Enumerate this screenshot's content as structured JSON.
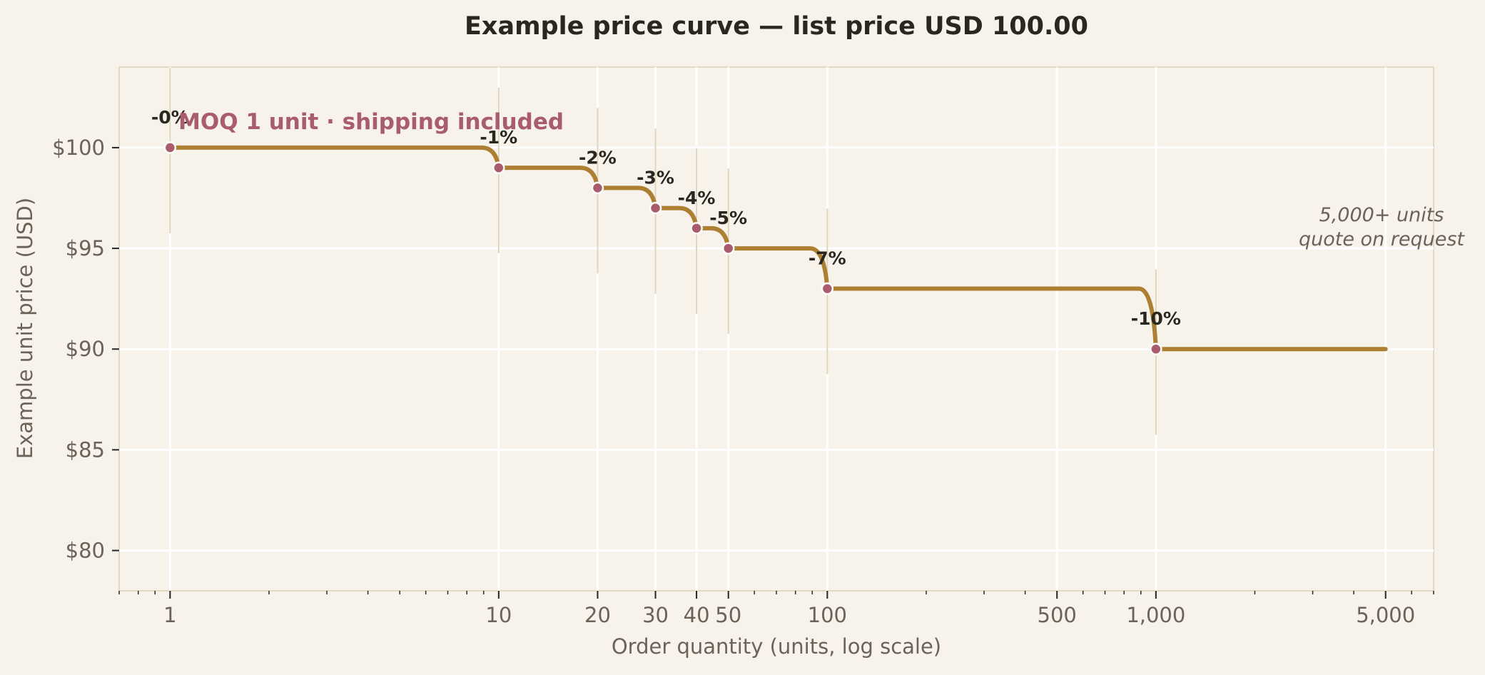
{
  "chart_data": {
    "type": "line",
    "title": "Example price curve — list price USD 100.00",
    "xlabel": "Order quantity (units, log scale)",
    "ylabel": "Example unit price (USD)",
    "x_scale": "log",
    "xlim": [
      0.7,
      7000
    ],
    "ylim": [
      78,
      104
    ],
    "grid": true,
    "x_ticks": [
      {
        "value": 1,
        "label": "1"
      },
      {
        "value": 10,
        "label": "10"
      },
      {
        "value": 20,
        "label": "20"
      },
      {
        "value": 30,
        "label": "30"
      },
      {
        "value": 40,
        "label": "40"
      },
      {
        "value": 50,
        "label": "50"
      },
      {
        "value": 100,
        "label": "100"
      },
      {
        "value": 500,
        "label": "500"
      },
      {
        "value": 1000,
        "label": "1,000"
      },
      {
        "value": 5000,
        "label": "5,000"
      }
    ],
    "y_ticks": [
      {
        "value": 80,
        "label": "$80"
      },
      {
        "value": 85,
        "label": "$85"
      },
      {
        "value": 90,
        "label": "$90"
      },
      {
        "value": 95,
        "label": "$95"
      },
      {
        "value": 100,
        "label": "$100"
      }
    ],
    "tiers": [
      {
        "qty": 1,
        "price": 100,
        "label": "-0%"
      },
      {
        "qty": 10,
        "price": 99,
        "label": "-1%"
      },
      {
        "qty": 20,
        "price": 98,
        "label": "-2%"
      },
      {
        "qty": 30,
        "price": 97,
        "label": "-3%"
      },
      {
        "qty": 40,
        "price": 96,
        "label": "-4%"
      },
      {
        "qty": 50,
        "price": 95,
        "label": "-5%"
      },
      {
        "qty": 100,
        "price": 93,
        "label": "-7%"
      },
      {
        "qty": 1000,
        "price": 90,
        "label": "-10%"
      }
    ],
    "curve_end_qty": 5000,
    "annotations": {
      "moq": "MOQ 1 unit · shipping included",
      "note_line1": "5,000+ units",
      "note_line2": "quote on request"
    },
    "colors": {
      "background": "#f7f2ea",
      "curve": "#ad7f33",
      "marker": "#a95c6b",
      "grid": "#ffffff",
      "frame": "#e3d9c2",
      "tier_line": "#e0d2b5"
    }
  }
}
